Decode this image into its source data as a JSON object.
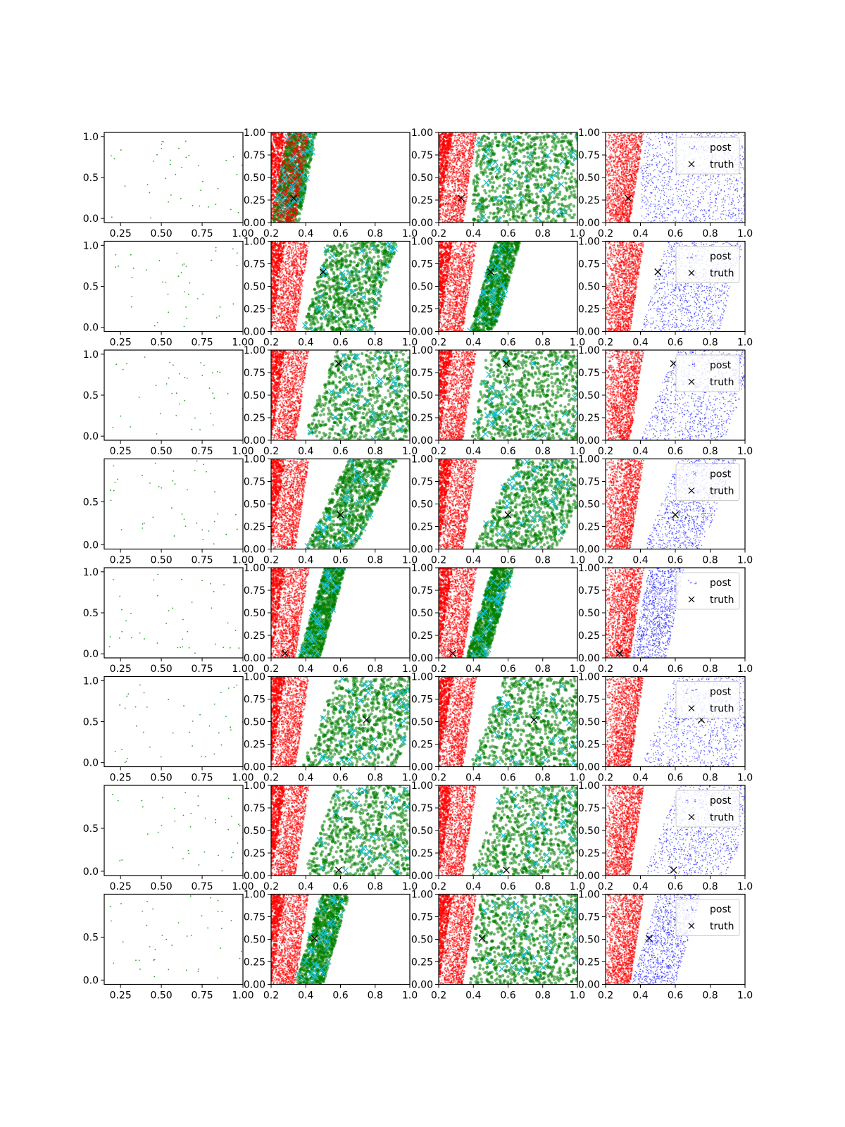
{
  "figure": {
    "rows": 8,
    "cols": 4
  },
  "colors": {
    "red_cloud": "#ff0000",
    "green_cloud": "#008000",
    "cyan_marker": "#17becf",
    "blue_cloud": "#0000ff",
    "truth_marker": "#000000",
    "obs_points": "#2ca02c"
  },
  "legend": {
    "post_label": "post",
    "truth_label": "truth"
  },
  "chart_data": {
    "type": "scatter",
    "truth_points": [
      {
        "x": 0.33,
        "y": 0.27
      },
      {
        "x": 0.5,
        "y": 0.66
      },
      {
        "x": 0.59,
        "y": 0.85
      },
      {
        "x": 0.6,
        "y": 0.38
      },
      {
        "x": 0.28,
        "y": 0.05
      },
      {
        "x": 0.75,
        "y": 0.52
      },
      {
        "x": 0.59,
        "y": 0.06
      },
      {
        "x": 0.45,
        "y": 0.51
      }
    ],
    "col1_panels": [
      {
        "xlim": [
          0.15,
          1.0
        ],
        "ylim": [
          -0.05,
          1.05
        ],
        "xticks": [
          "0.25",
          "0.50",
          "0.75",
          "1.00"
        ],
        "yticks": [
          "0.0",
          "0.5",
          "1.0"
        ],
        "n_points": 40
      },
      {
        "xlim": [
          0.15,
          1.0
        ],
        "ylim": [
          -0.05,
          1.05
        ],
        "xticks": [
          "0.25",
          "0.50",
          "0.75",
          "1.00"
        ],
        "yticks": [
          "0.0",
          "0.5",
          "1.0"
        ],
        "n_points": 40
      },
      {
        "xlim": [
          0.15,
          1.0
        ],
        "ylim": [
          -0.05,
          1.05
        ],
        "xticks": [
          "0.25",
          "0.50",
          "0.75",
          "1.00"
        ],
        "yticks": [
          "0.0",
          "0.5",
          "1.0"
        ],
        "n_points": 40
      },
      {
        "xlim": [
          0.15,
          1.0
        ],
        "ylim": [
          -0.05,
          1.0
        ],
        "xticks": [
          "0.25",
          "0.50",
          "0.75",
          "1.00"
        ],
        "yticks": [
          "0.0",
          "0.5"
        ],
        "n_points": 40
      },
      {
        "xlim": [
          0.15,
          1.0
        ],
        "ylim": [
          -0.05,
          1.05
        ],
        "xticks": [
          "0.25",
          "0.50",
          "0.75",
          "1.00"
        ],
        "yticks": [
          "0.0",
          "0.5",
          "1.0"
        ],
        "n_points": 40
      },
      {
        "xlim": [
          0.15,
          1.0
        ],
        "ylim": [
          -0.05,
          1.05
        ],
        "xticks": [
          "0.25",
          "0.50",
          "0.75",
          "1.00"
        ],
        "yticks": [
          "0.0",
          "0.5",
          "1.0"
        ],
        "n_points": 40
      },
      {
        "xlim": [
          0.15,
          1.0
        ],
        "ylim": [
          -0.05,
          1.0
        ],
        "xticks": [
          "0.25",
          "0.50",
          "0.75",
          "1.00"
        ],
        "yticks": [
          "0.0",
          "0.5"
        ],
        "n_points": 40
      },
      {
        "xlim": [
          0.15,
          1.0
        ],
        "ylim": [
          -0.05,
          1.0
        ],
        "xticks": [
          "0.25",
          "0.50",
          "0.75",
          "1.00"
        ],
        "yticks": [
          "0.0",
          "0.5"
        ],
        "n_points": 40
      }
    ],
    "posterior_panels": {
      "xlim": [
        0.2,
        1.0
      ],
      "ylim": [
        0.0,
        1.0
      ],
      "xticks": [
        "0.2",
        "0.4",
        "0.6",
        "0.8",
        "1.0"
      ],
      "yticks": [
        "0.00",
        "0.25",
        "0.50",
        "0.75",
        "1.00"
      ],
      "red_band": {
        "x_left_at_y0": 0.2,
        "x_right_at_y0": 0.34,
        "x_right_at_y1": 0.42
      },
      "green_extent_col2": [
        {
          "x_min": 0.2,
          "x_max": 0.36,
          "slope": 0.1
        },
        {
          "x_min": 0.38,
          "x_max": 0.78,
          "slope": 0.15
        },
        {
          "x_min": 0.38,
          "x_max": 0.98,
          "slope": 0.2
        },
        {
          "x_min": 0.4,
          "x_max": 0.68,
          "slope": 0.25
        },
        {
          "x_min": 0.36,
          "x_max": 0.48,
          "slope": 0.15
        },
        {
          "x_min": 0.38,
          "x_max": 0.92,
          "slope": 0.2
        },
        {
          "x_min": 0.38,
          "x_max": 1.0,
          "slope": 0.2
        },
        {
          "x_min": 0.34,
          "x_max": 0.5,
          "slope": 0.15
        }
      ],
      "green_extent_col3": [
        {
          "x_min": 0.38,
          "x_max": 0.98,
          "slope": 0.05
        },
        {
          "x_min": 0.38,
          "x_max": 0.52,
          "slope": 0.15
        },
        {
          "x_min": 0.38,
          "x_max": 1.0,
          "slope": 0.1
        },
        {
          "x_min": 0.4,
          "x_max": 0.88,
          "slope": 0.25
        },
        {
          "x_min": 0.36,
          "x_max": 0.48,
          "slope": 0.15
        },
        {
          "x_min": 0.38,
          "x_max": 1.0,
          "slope": 0.2
        },
        {
          "x_min": 0.38,
          "x_max": 1.0,
          "slope": 0.2
        },
        {
          "x_min": 0.38,
          "x_max": 1.0,
          "slope": 0.05
        }
      ],
      "blue_extent": [
        {
          "x_min": 0.4,
          "x_max": 1.0,
          "slope": 0.0
        },
        {
          "x_min": 0.4,
          "x_max": 0.85,
          "slope": 0.15
        },
        {
          "x_min": 0.4,
          "x_max": 0.88,
          "slope": 0.2
        },
        {
          "x_min": 0.42,
          "x_max": 0.75,
          "slope": 0.2
        },
        {
          "x_min": 0.35,
          "x_max": 0.55,
          "slope": 0.1
        },
        {
          "x_min": 0.4,
          "x_max": 0.95,
          "slope": 0.2
        },
        {
          "x_min": 0.42,
          "x_max": 0.9,
          "slope": 0.2
        },
        {
          "x_min": 0.35,
          "x_max": 0.6,
          "slope": 0.15
        }
      ]
    }
  }
}
